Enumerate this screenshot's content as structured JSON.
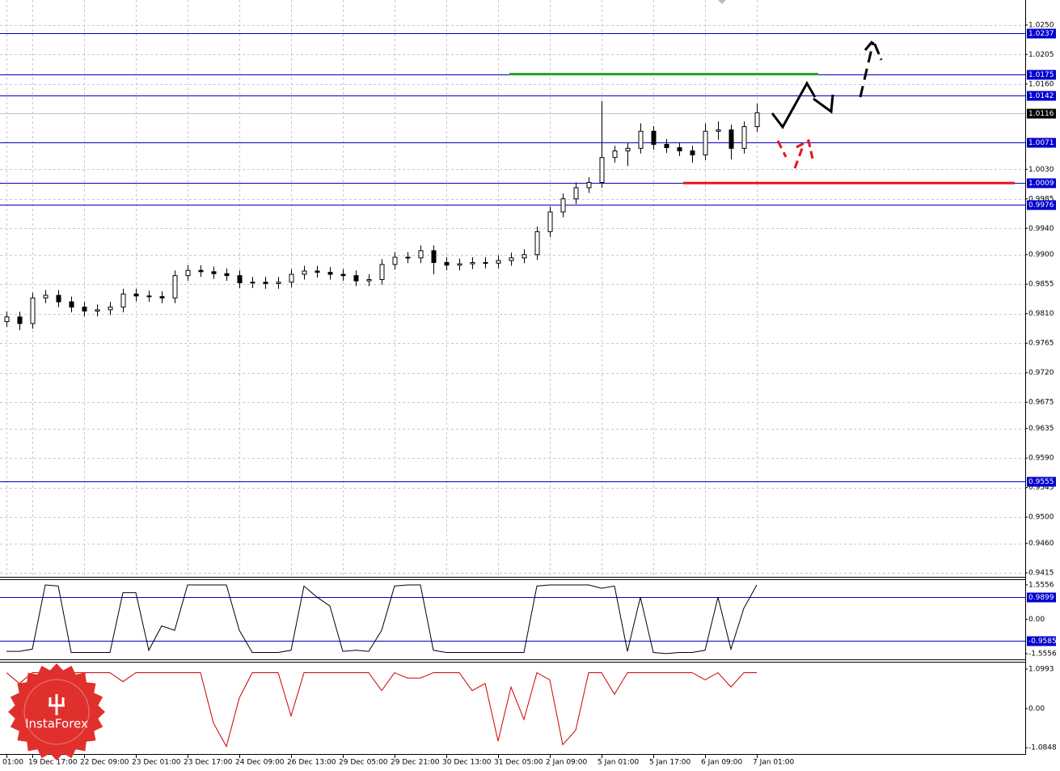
{
  "watermark": "InstaForex",
  "chart_data": [
    {
      "type": "candlestick",
      "categories": [
        "01:00",
        null,
        "19 Dec 17:00",
        null,
        null,
        null,
        "22 Dec 09:00",
        null,
        null,
        null,
        "23 Dec 01:00",
        null,
        null,
        null,
        "23 Dec 17:00",
        null,
        null,
        null,
        "24 Dec 09:00",
        null,
        null,
        null,
        "26 Dec 13:00",
        null,
        null,
        null,
        "29 Dec 05:00",
        null,
        null,
        null,
        "29 Dec 21:00",
        null,
        null,
        null,
        "30 Dec 13:00",
        null,
        null,
        null,
        "31 Dec 05:00",
        null,
        null,
        null,
        "2 Jan 09:00",
        null,
        null,
        null,
        "5 Jan 01:00",
        null,
        null,
        null,
        "5 Jan 17:00",
        null,
        null,
        null,
        "6 Jan 09:00",
        null,
        null,
        null,
        "7 Jan 01:00"
      ],
      "open": [
        0.9798,
        0.9805,
        0.9795,
        0.9834,
        0.9838,
        0.9828,
        0.982,
        0.9814,
        0.9816,
        0.982,
        0.984,
        0.9837,
        0.9836,
        0.9834,
        0.9868,
        0.9876,
        0.9874,
        0.9871,
        0.9868,
        0.9857,
        0.9858,
        0.9856,
        0.9858,
        0.987,
        0.9875,
        0.9873,
        0.987,
        0.9868,
        0.986,
        0.9862,
        0.9885,
        0.9896,
        0.9895,
        0.9906,
        0.9888,
        0.9884,
        0.9886,
        0.9888,
        0.9887,
        0.9891,
        0.9895,
        0.99,
        0.9935,
        0.9965,
        0.9985,
        1.0002,
        1.001,
        1.0048,
        1.0058,
        1.0062,
        1.0088,
        1.0068,
        1.0063,
        1.0058,
        1.0052,
        1.0088,
        1.009,
        1.0062,
        1.0095
      ],
      "high": [
        0.9813,
        0.9813,
        0.9842,
        0.9846,
        0.9846,
        0.9836,
        0.9828,
        0.9824,
        0.9828,
        0.9848,
        0.9848,
        0.9845,
        0.9844,
        0.9876,
        0.9884,
        0.9884,
        0.9882,
        0.9879,
        0.9876,
        0.9866,
        0.9866,
        0.9866,
        0.9878,
        0.9883,
        0.9883,
        0.9881,
        0.9878,
        0.9876,
        0.987,
        0.9893,
        0.9904,
        0.9904,
        0.9914,
        0.9914,
        0.9896,
        0.9894,
        0.9896,
        0.9896,
        0.9899,
        0.9903,
        0.9908,
        0.9943,
        0.9973,
        0.9993,
        1.001,
        1.0018,
        1.0134,
        1.0066,
        1.007,
        1.01,
        1.0096,
        1.0076,
        1.0071,
        1.0066,
        1.01,
        1.0103,
        1.0098,
        1.0103,
        1.013
      ],
      "low": [
        0.979,
        0.9785,
        0.9787,
        0.9826,
        0.982,
        0.9812,
        0.9806,
        0.9806,
        0.9808,
        0.9812,
        0.9829,
        0.9828,
        0.9826,
        0.9826,
        0.986,
        0.9866,
        0.9863,
        0.986,
        0.9849,
        0.9849,
        0.9848,
        0.9848,
        0.985,
        0.9862,
        0.9865,
        0.9862,
        0.986,
        0.9852,
        0.9852,
        0.9854,
        0.9877,
        0.9887,
        0.9887,
        0.987,
        0.9876,
        0.9876,
        0.9878,
        0.9879,
        0.9879,
        0.9883,
        0.9887,
        0.9892,
        0.9927,
        0.9957,
        0.9977,
        0.9994,
        1.0002,
        1.004,
        1.0035,
        1.0054,
        1.006,
        1.0055,
        1.005,
        1.004,
        1.0044,
        1.0075,
        1.0045,
        1.0054,
        1.0087
      ],
      "close": [
        0.9805,
        0.9795,
        0.9834,
        0.9838,
        0.9828,
        0.982,
        0.9814,
        0.9816,
        0.982,
        0.984,
        0.9837,
        0.9836,
        0.9834,
        0.9868,
        0.9876,
        0.9874,
        0.9871,
        0.9868,
        0.9857,
        0.9858,
        0.9856,
        0.9858,
        0.987,
        0.9875,
        0.9873,
        0.987,
        0.9868,
        0.986,
        0.9862,
        0.9885,
        0.9896,
        0.9895,
        0.9906,
        0.9888,
        0.9884,
        0.9886,
        0.9888,
        0.9887,
        0.9891,
        0.9895,
        0.99,
        0.9935,
        0.9965,
        0.9985,
        1.0002,
        1.001,
        1.0048,
        1.0058,
        1.0062,
        1.0088,
        1.0068,
        1.0063,
        1.0058,
        1.0052,
        1.0088,
        1.009,
        1.0062,
        1.0095,
        1.0116
      ],
      "up_color": "#ffffff",
      "down_color": "#000000",
      "ylim": [
        0.9409,
        1.0288
      ],
      "yticks": [
        {
          "value": 1.025,
          "label": "1.0250"
        },
        1.0205,
        {
          "value": 1.016,
          "label": "1.0160"
        },
        {
          "value": 1.003,
          "label": "1.0030"
        },
        0.9985,
        {
          "value": 0.994,
          "label": "0.9940"
        },
        {
          "value": 0.99,
          "label": "0.9900"
        },
        0.9855,
        {
          "value": 0.981,
          "label": "0.9810"
        },
        0.9765,
        {
          "value": 0.972,
          "label": "0.9720"
        },
        0.9675,
        0.9635,
        {
          "value": 0.959,
          "label": "0.9590"
        },
        0.9545,
        {
          "value": 0.95,
          "label": "0.9500"
        },
        {
          "value": 0.946,
          "label": "0.9460"
        },
        0.9415
      ],
      "grid": true,
      "levels": [
        1.0237,
        1.0175,
        1.0142,
        1.0071,
        1.0009,
        0.9976,
        0.9555
      ],
      "level_color": "#0000cc",
      "current_price": 1.0116,
      "segments": [
        {
          "value": 1.0175,
          "color": "#1fa31f"
        },
        {
          "value": 1.0009,
          "color": "#e8141b"
        }
      ]
    },
    {
      "type": "line",
      "series": [
        {
          "color": "#000000",
          "values": [
            -1.45,
            -1.45,
            -1.35,
            1.55,
            1.5,
            -1.5,
            -1.5,
            -1.5,
            -1.5,
            1.2,
            1.2,
            -1.4,
            -0.3,
            -0.5,
            1.55,
            1.55,
            1.55,
            1.55,
            -0.5,
            -1.5,
            -1.5,
            -1.5,
            -1.4,
            1.5,
            1.0,
            0.6,
            -1.45,
            -1.4,
            -1.45,
            -0.5,
            1.5,
            1.55,
            1.55,
            -1.4,
            -1.5,
            -1.5,
            -1.5,
            -1.5,
            -1.5,
            -1.5,
            -1.5,
            1.5,
            1.55,
            1.55,
            1.55,
            1.55,
            1.4,
            1.5,
            -1.45,
            1.0,
            -1.5,
            -1.55,
            -1.5,
            -1.5,
            -1.4,
            1.0,
            -1.35,
            0.5,
            1.55
          ]
        }
      ],
      "ylim": [
        -1.81,
        1.77
      ],
      "yticks": [
        1.5556,
        {
          "value": 0,
          "label": "0.00"
        },
        -1.5556
      ],
      "levels": [
        0.9899,
        -0.9585
      ],
      "level_color": "#0000cc"
    },
    {
      "type": "line",
      "series": [
        {
          "color": "#cc0000",
          "values": [
            1.0,
            0.7,
            1.0,
            1.0,
            1.0,
            1.0,
            1.0,
            1.0,
            1.0,
            0.75,
            1.0,
            1.0,
            1.0,
            1.0,
            1.0,
            1.0,
            -0.4,
            -1.05,
            0.3,
            1.0,
            1.0,
            1.0,
            -0.2,
            1.0,
            1.0,
            1.0,
            1.0,
            1.0,
            1.0,
            0.5,
            1.0,
            0.85,
            0.85,
            1.0,
            1.0,
            1.0,
            0.5,
            0.7,
            -0.9,
            0.6,
            -0.3,
            1.0,
            0.8,
            -1.0,
            -0.6,
            1.0,
            1.0,
            0.4,
            1.0,
            1.0,
            1.0,
            1.0,
            1.0,
            1.0,
            0.8,
            1.0,
            0.6,
            1.0,
            1.0
          ]
        }
      ],
      "ylim": [
        -1.26,
        1.28
      ],
      "yticks": [
        1.0993,
        {
          "value": 0,
          "label": "0.00"
        },
        -1.0848
      ]
    }
  ]
}
